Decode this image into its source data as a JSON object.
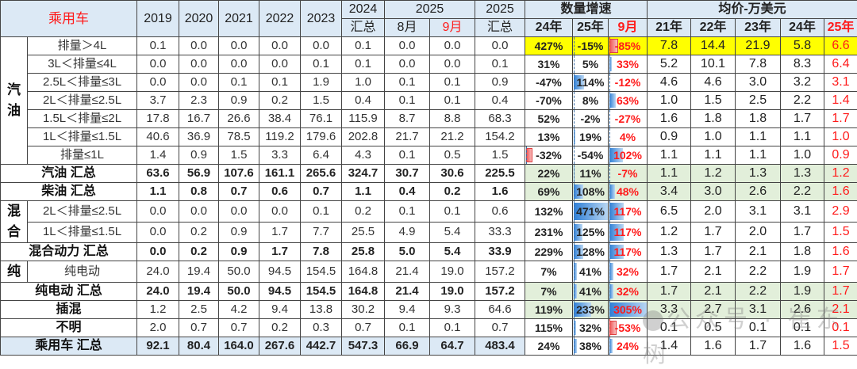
{
  "header": {
    "title": "乘用车",
    "years": [
      "2019",
      "2020",
      "2021",
      "2022",
      "2023"
    ],
    "total_2024_top": "2024",
    "total_2024_bottom": "汇总",
    "y2025_group": "2025",
    "aug": "8月",
    "sep": "9月",
    "total_2025_top": "2025",
    "total_2025_bottom": "汇总",
    "growth_group": "数量增速",
    "growth_cols": [
      "24年",
      "25年",
      "9月"
    ],
    "price_group": "均价-万美元",
    "price_cols": [
      "21年",
      "22年",
      "23年",
      "24年",
      "25年"
    ]
  },
  "groups": {
    "gasoline": "汽油",
    "hybrid": "混合",
    "ev": "纯"
  },
  "rows": [
    {
      "label": "排量＞4L",
      "vals": [
        "0.1",
        "0.0",
        "0.0",
        "0.0",
        "0.0",
        "0.1",
        "0.0",
        "0.0",
        "0.0"
      ],
      "g24": "427%",
      "g25": "-15%",
      "gsep": "-85%",
      "prices": [
        "7.8",
        "14.4",
        "21.9",
        "5.8",
        "6.6"
      ]
    },
    {
      "label": "3L＜排量≤4L",
      "vals": [
        "0.0",
        "0.0",
        "0.0",
        "0.0",
        "0.1",
        "0.1",
        "0.0",
        "0.0",
        "0.1"
      ],
      "g24": "31%",
      "g25": "5%",
      "gsep": "33%",
      "prices": [
        "5.2",
        "10.1",
        "7.8",
        "8.3",
        "6.4"
      ]
    },
    {
      "label": "2.5L＜排量≤3L",
      "vals": [
        "0.0",
        "0.0",
        "0.1",
        "0.1",
        "1.9",
        "1.0",
        "0.1",
        "0.1",
        "0.9"
      ],
      "g24": "-47%",
      "g25": "114%",
      "gsep": "-12%",
      "prices": [
        "4.6",
        "4.6",
        "3.0",
        "3.2",
        "3.1"
      ]
    },
    {
      "label": "2L＜排量≤2.5L",
      "vals": [
        "3.7",
        "2.3",
        "0.9",
        "0.2",
        "1.5",
        "0.4",
        "0.1",
        "0.1",
        "0.4"
      ],
      "g24": "-70%",
      "g25": "8%",
      "gsep": "63%",
      "prices": [
        "1.0",
        "1.5",
        "2.5",
        "2.2",
        "1.4"
      ]
    },
    {
      "label": "1.5L＜排量≤2L",
      "vals": [
        "17.8",
        "16.7",
        "26.6",
        "38.4",
        "76.1",
        "115.9",
        "8.7",
        "8.8",
        "68.3"
      ],
      "g24": "52%",
      "g25": "-2%",
      "gsep": "-27%",
      "prices": [
        "1.6",
        "1.8",
        "1.8",
        "1.7",
        "1.7"
      ]
    },
    {
      "label": "1L＜排量≤1.5L",
      "vals": [
        "40.6",
        "36.9",
        "78.5",
        "119.2",
        "179.6",
        "202.8",
        "21.7",
        "21.2",
        "154.2"
      ],
      "g24": "13%",
      "g25": "19%",
      "gsep": "4%",
      "prices": [
        "0.9",
        "1.0",
        "1.1",
        "1.1",
        "1.0"
      ]
    },
    {
      "label": "排量≤1L",
      "vals": [
        "1.4",
        "0.9",
        "1.5",
        "3.3",
        "6.4",
        "4.3",
        "0.1",
        "0.5",
        "1.5"
      ],
      "g24": "-32%",
      "g25": "-54%",
      "gsep": "102%",
      "prices": [
        "1.1",
        "1.1",
        "1.1",
        "1.0",
        "0.9"
      ]
    },
    {
      "label": "汽油 汇总",
      "vals": [
        "63.6",
        "56.9",
        "107.6",
        "161.1",
        "265.6",
        "324.7",
        "30.7",
        "30.6",
        "225.5"
      ],
      "g24": "22%",
      "g25": "11%",
      "gsep": "-7%",
      "prices": [
        "1.1",
        "1.2",
        "1.3",
        "1.3",
        "1.2"
      ]
    },
    {
      "label": "柴油 汇总",
      "vals": [
        "1.1",
        "0.8",
        "0.7",
        "0.6",
        "0.7",
        "1.1",
        "0.4",
        "0.2",
        "1.6"
      ],
      "g24": "69%",
      "g25": "108%",
      "gsep": "48%",
      "prices": [
        "3.4",
        "3.0",
        "2.6",
        "2.2",
        "1.6"
      ]
    },
    {
      "label": "2L＜排量≤2.5L",
      "vals": [
        "0.0",
        "0.0",
        "0.0",
        "0.0",
        "0.1",
        "0.2",
        "0.1",
        "0.1",
        "0.6"
      ],
      "g24": "132%",
      "g25": "471%",
      "gsep": "117%",
      "prices": [
        "6.5",
        "2.0",
        "3.1",
        "3.1",
        "2.9"
      ]
    },
    {
      "label": "1L＜排量≤1.5L",
      "vals": [
        "0.0",
        "0.2",
        "0.9",
        "1.7",
        "7.7",
        "25.5",
        "4.9",
        "5.4",
        "33.3"
      ],
      "g24": "231%",
      "g25": "125%",
      "gsep": "117%",
      "prices": [
        "1.2",
        "1.7",
        "2.0",
        "1.7",
        "1.5"
      ]
    },
    {
      "label": "混合动力 汇总",
      "vals": [
        "0.0",
        "0.2",
        "0.9",
        "1.7",
        "7.8",
        "25.8",
        "5.0",
        "5.4",
        "33.9"
      ],
      "g24": "229%",
      "g25": "128%",
      "gsep": "117%",
      "prices": [
        "1.3",
        "1.7",
        "2.1",
        "1.8",
        "1.6"
      ]
    },
    {
      "label": "纯电动",
      "vals": [
        "24.0",
        "19.4",
        "50.0",
        "94.5",
        "154.5",
        "164.8",
        "21.4",
        "19.0",
        "157.2"
      ],
      "g24": "7%",
      "g25": "41%",
      "gsep": "32%",
      "prices": [
        "1.7",
        "2.1",
        "2.2",
        "1.9",
        "1.7"
      ]
    },
    {
      "label": "纯电动 汇总",
      "vals": [
        "24.0",
        "19.4",
        "50.0",
        "94.5",
        "154.5",
        "164.8",
        "21.4",
        "19.0",
        "157.2"
      ],
      "g24": "7%",
      "g25": "41%",
      "gsep": "32%",
      "prices": [
        "1.7",
        "2.1",
        "2.2",
        "1.9",
        "1.7"
      ]
    },
    {
      "label": "插混",
      "vals": [
        "1.2",
        "2.5",
        "4.2",
        "9.4",
        "13.8",
        "30.2",
        "9.4",
        "9.3",
        "64.6"
      ],
      "g24": "119%",
      "g25": "233%",
      "gsep": "305%",
      "prices": [
        "3.3",
        "2.7",
        "3.1",
        "2.6",
        "2.1"
      ]
    },
    {
      "label": "不明",
      "vals": [
        "2.0",
        "0.7",
        "0.7",
        "0.2",
        "0.3",
        "0.7",
        "0.1",
        "0.1",
        "0.7"
      ],
      "g24": "115%",
      "g25": "32%",
      "gsep": "-53%",
      "prices": [
        "0.1",
        "0.5",
        "0.1",
        "0.1",
        "0.1"
      ]
    },
    {
      "label": "乘用车 汇总",
      "vals": [
        "92.1",
        "80.4",
        "164.0",
        "267.6",
        "442.7",
        "547.3",
        "66.9",
        "64.7",
        "483.4"
      ],
      "g24": "24%",
      "g25": "38%",
      "gsep": "24%",
      "prices": [
        "1.4",
        "1.6",
        "1.7",
        "1.6",
        "1.5"
      ]
    }
  ],
  "colors": {
    "header_bg": "#dce9f5",
    "highlight_yellow": "#ffff00",
    "subtotal_green": "#e2efda",
    "accent_red": "#ff1a1a",
    "bar_blue": "#2f7fd6",
    "bar_red": "#f05a5a"
  },
  "watermark": "公众号 · 崔东树"
}
